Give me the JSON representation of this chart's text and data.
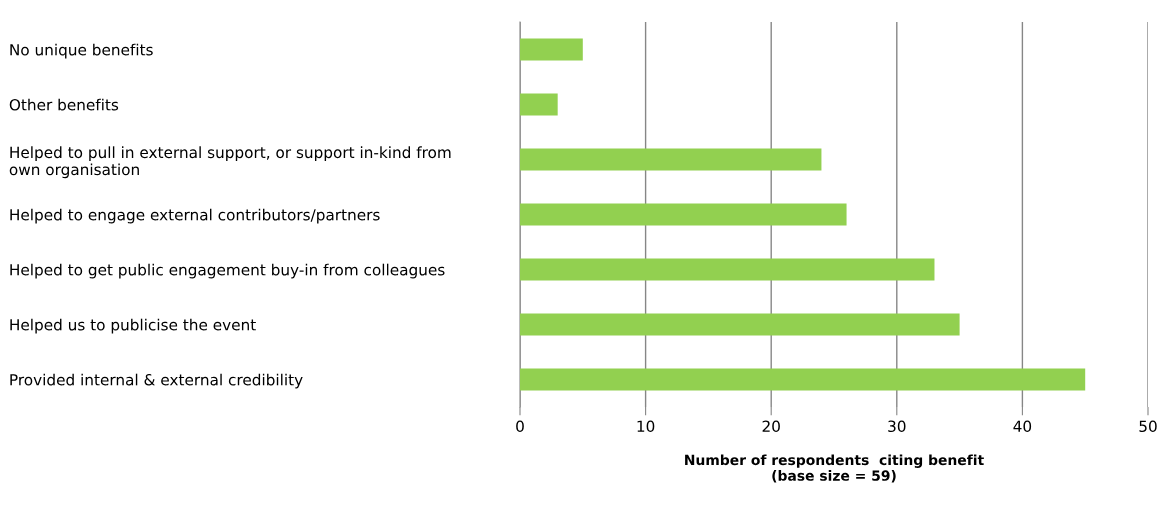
{
  "chart_data": {
    "type": "bar",
    "orientation": "horizontal",
    "categories": [
      "No unique benefits",
      "Other benefits",
      "Helped to pull in external support, or support in-kind from\nown organisation",
      "Helped to engage external contributors/partners",
      "Helped to get public engagement buy-in from colleagues",
      "Helped us to publicise the event",
      "Provided internal & external credibility"
    ],
    "values": [
      5,
      3,
      24,
      26,
      33,
      35,
      45
    ],
    "color": "#92d050",
    "xlabel": "Number of respondents  citing benefit\n(base size = 59)",
    "xlim": [
      0,
      50
    ],
    "xticks": [
      0,
      10,
      20,
      30,
      40,
      50
    ],
    "grid": "x"
  }
}
